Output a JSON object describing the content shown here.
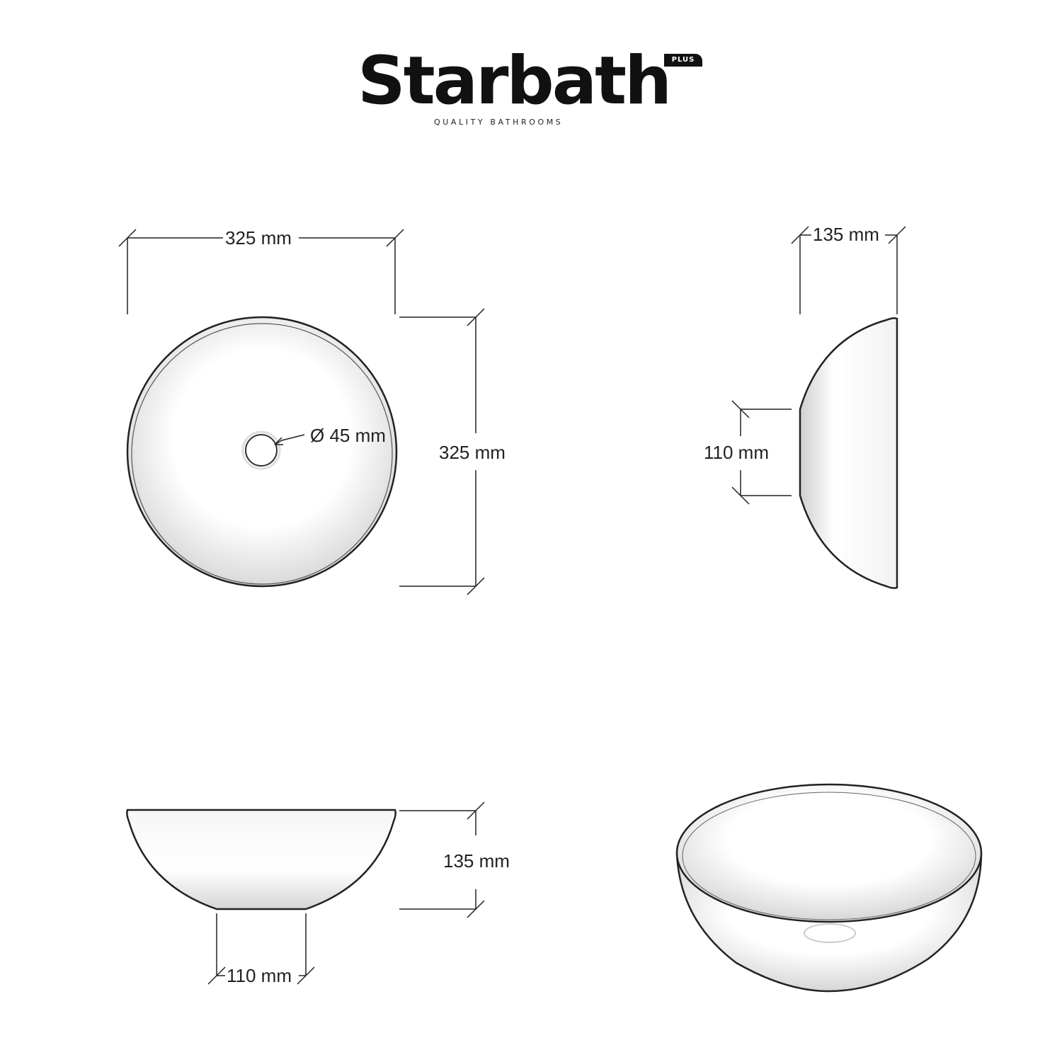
{
  "brand": {
    "name": "Starbath",
    "badge": "PLUS",
    "tagline": "QUALITY BATHROOMS"
  },
  "views": {
    "top": {
      "width_label": "325 mm",
      "depth_label": "325 mm",
      "drain_label": "Ø 45 mm"
    },
    "side": {
      "height_label": "135 mm",
      "base_label": "110 mm"
    },
    "front": {
      "height_label": "135 mm",
      "base_label": "110 mm"
    }
  },
  "colors": {
    "line": "#222222",
    "basin_shadow": "#d8d8d8"
  }
}
